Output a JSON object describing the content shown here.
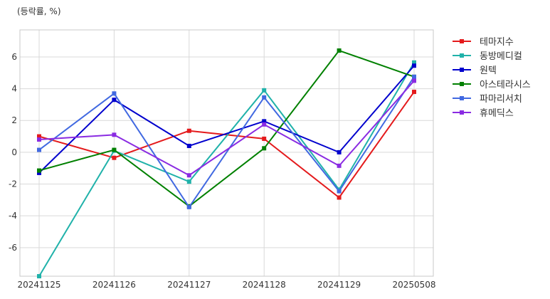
{
  "chart_data": {
    "type": "line",
    "unit_label": "(등락률, %)",
    "categories": [
      "20241125",
      "20241126",
      "20241127",
      "20241128",
      "20241129",
      "20250508"
    ],
    "ylim": [
      -7.8,
      7.7
    ],
    "yticks": [
      -6,
      -4,
      -2,
      0,
      2,
      4,
      6
    ],
    "grid": true,
    "legend_position": "right",
    "series": [
      {
        "name": "테마지수",
        "color": "#e41a1c",
        "values": [
          1.0,
          -0.35,
          1.35,
          0.85,
          -2.85,
          3.8
        ]
      },
      {
        "name": "동방메디컬",
        "color": "#20b2aa",
        "values": [
          -7.8,
          0.1,
          -1.85,
          3.9,
          -2.35,
          5.65
        ]
      },
      {
        "name": "원텍",
        "color": "#0000cd",
        "values": [
          -1.3,
          3.3,
          0.4,
          1.95,
          0.0,
          5.45
        ]
      },
      {
        "name": "아스테라시스",
        "color": "#008000",
        "values": [
          -1.15,
          0.15,
          -3.4,
          0.25,
          6.4,
          4.75
        ]
      },
      {
        "name": "파마리서치",
        "color": "#4169e1",
        "values": [
          0.15,
          3.7,
          -3.45,
          3.45,
          -2.45,
          4.75
        ]
      },
      {
        "name": "휴메딕스",
        "color": "#8a2be2",
        "values": [
          0.8,
          1.1,
          -1.45,
          1.75,
          -0.85,
          4.5
        ]
      }
    ]
  }
}
